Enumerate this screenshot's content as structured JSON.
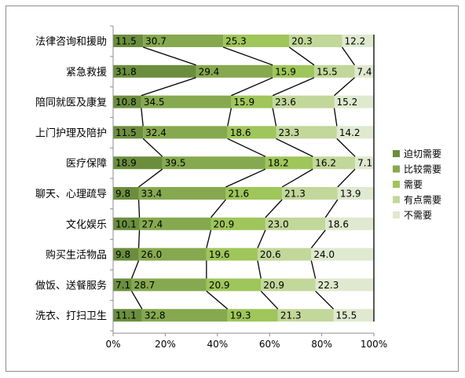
{
  "chart_data": {
    "type": "bar",
    "orientation": "horizontal",
    "stacked": "percent",
    "categories": [
      "法律咨询和援助",
      "紧急救援",
      "陪同就医及康复",
      "上门护理及陪护",
      "医疗保障",
      "聊天、心理疏导",
      "文化娱乐",
      "购买生活物品",
      "做饭、送餐服务",
      "洗衣、打扫卫生"
    ],
    "series": [
      {
        "name": "迫切需要",
        "color": "#6b8e3e",
        "values": [
          11.5,
          31.8,
          10.8,
          11.5,
          18.9,
          9.8,
          10.1,
          9.8,
          7.1,
          11.1
        ]
      },
      {
        "name": "比较需要",
        "color": "#86a94f",
        "values": [
          30.7,
          29.4,
          34.5,
          32.4,
          39.5,
          33.4,
          27.4,
          26.0,
          28.7,
          32.8
        ]
      },
      {
        "name": "需要",
        "color": "#9fc65a",
        "values": [
          25.3,
          15.9,
          15.9,
          18.6,
          18.2,
          21.6,
          20.9,
          19.6,
          20.9,
          19.3
        ]
      },
      {
        "name": "有点需要",
        "color": "#c2d79a",
        "values": [
          20.3,
          15.5,
          23.6,
          23.3,
          16.2,
          21.3,
          23.0,
          20.6,
          20.9,
          21.3
        ]
      },
      {
        "name": "不需要",
        "color": "#dfe9cf",
        "values": [
          12.2,
          7.4,
          15.2,
          14.2,
          7.1,
          13.9,
          18.6,
          24.0,
          22.3,
          15.5
        ]
      }
    ],
    "x_ticks": [
      "0%",
      "20%",
      "40%",
      "60%",
      "80%",
      "100%"
    ],
    "xlim": [
      0,
      100
    ],
    "series_lines": true,
    "legend_position": "right",
    "grid": false
  }
}
